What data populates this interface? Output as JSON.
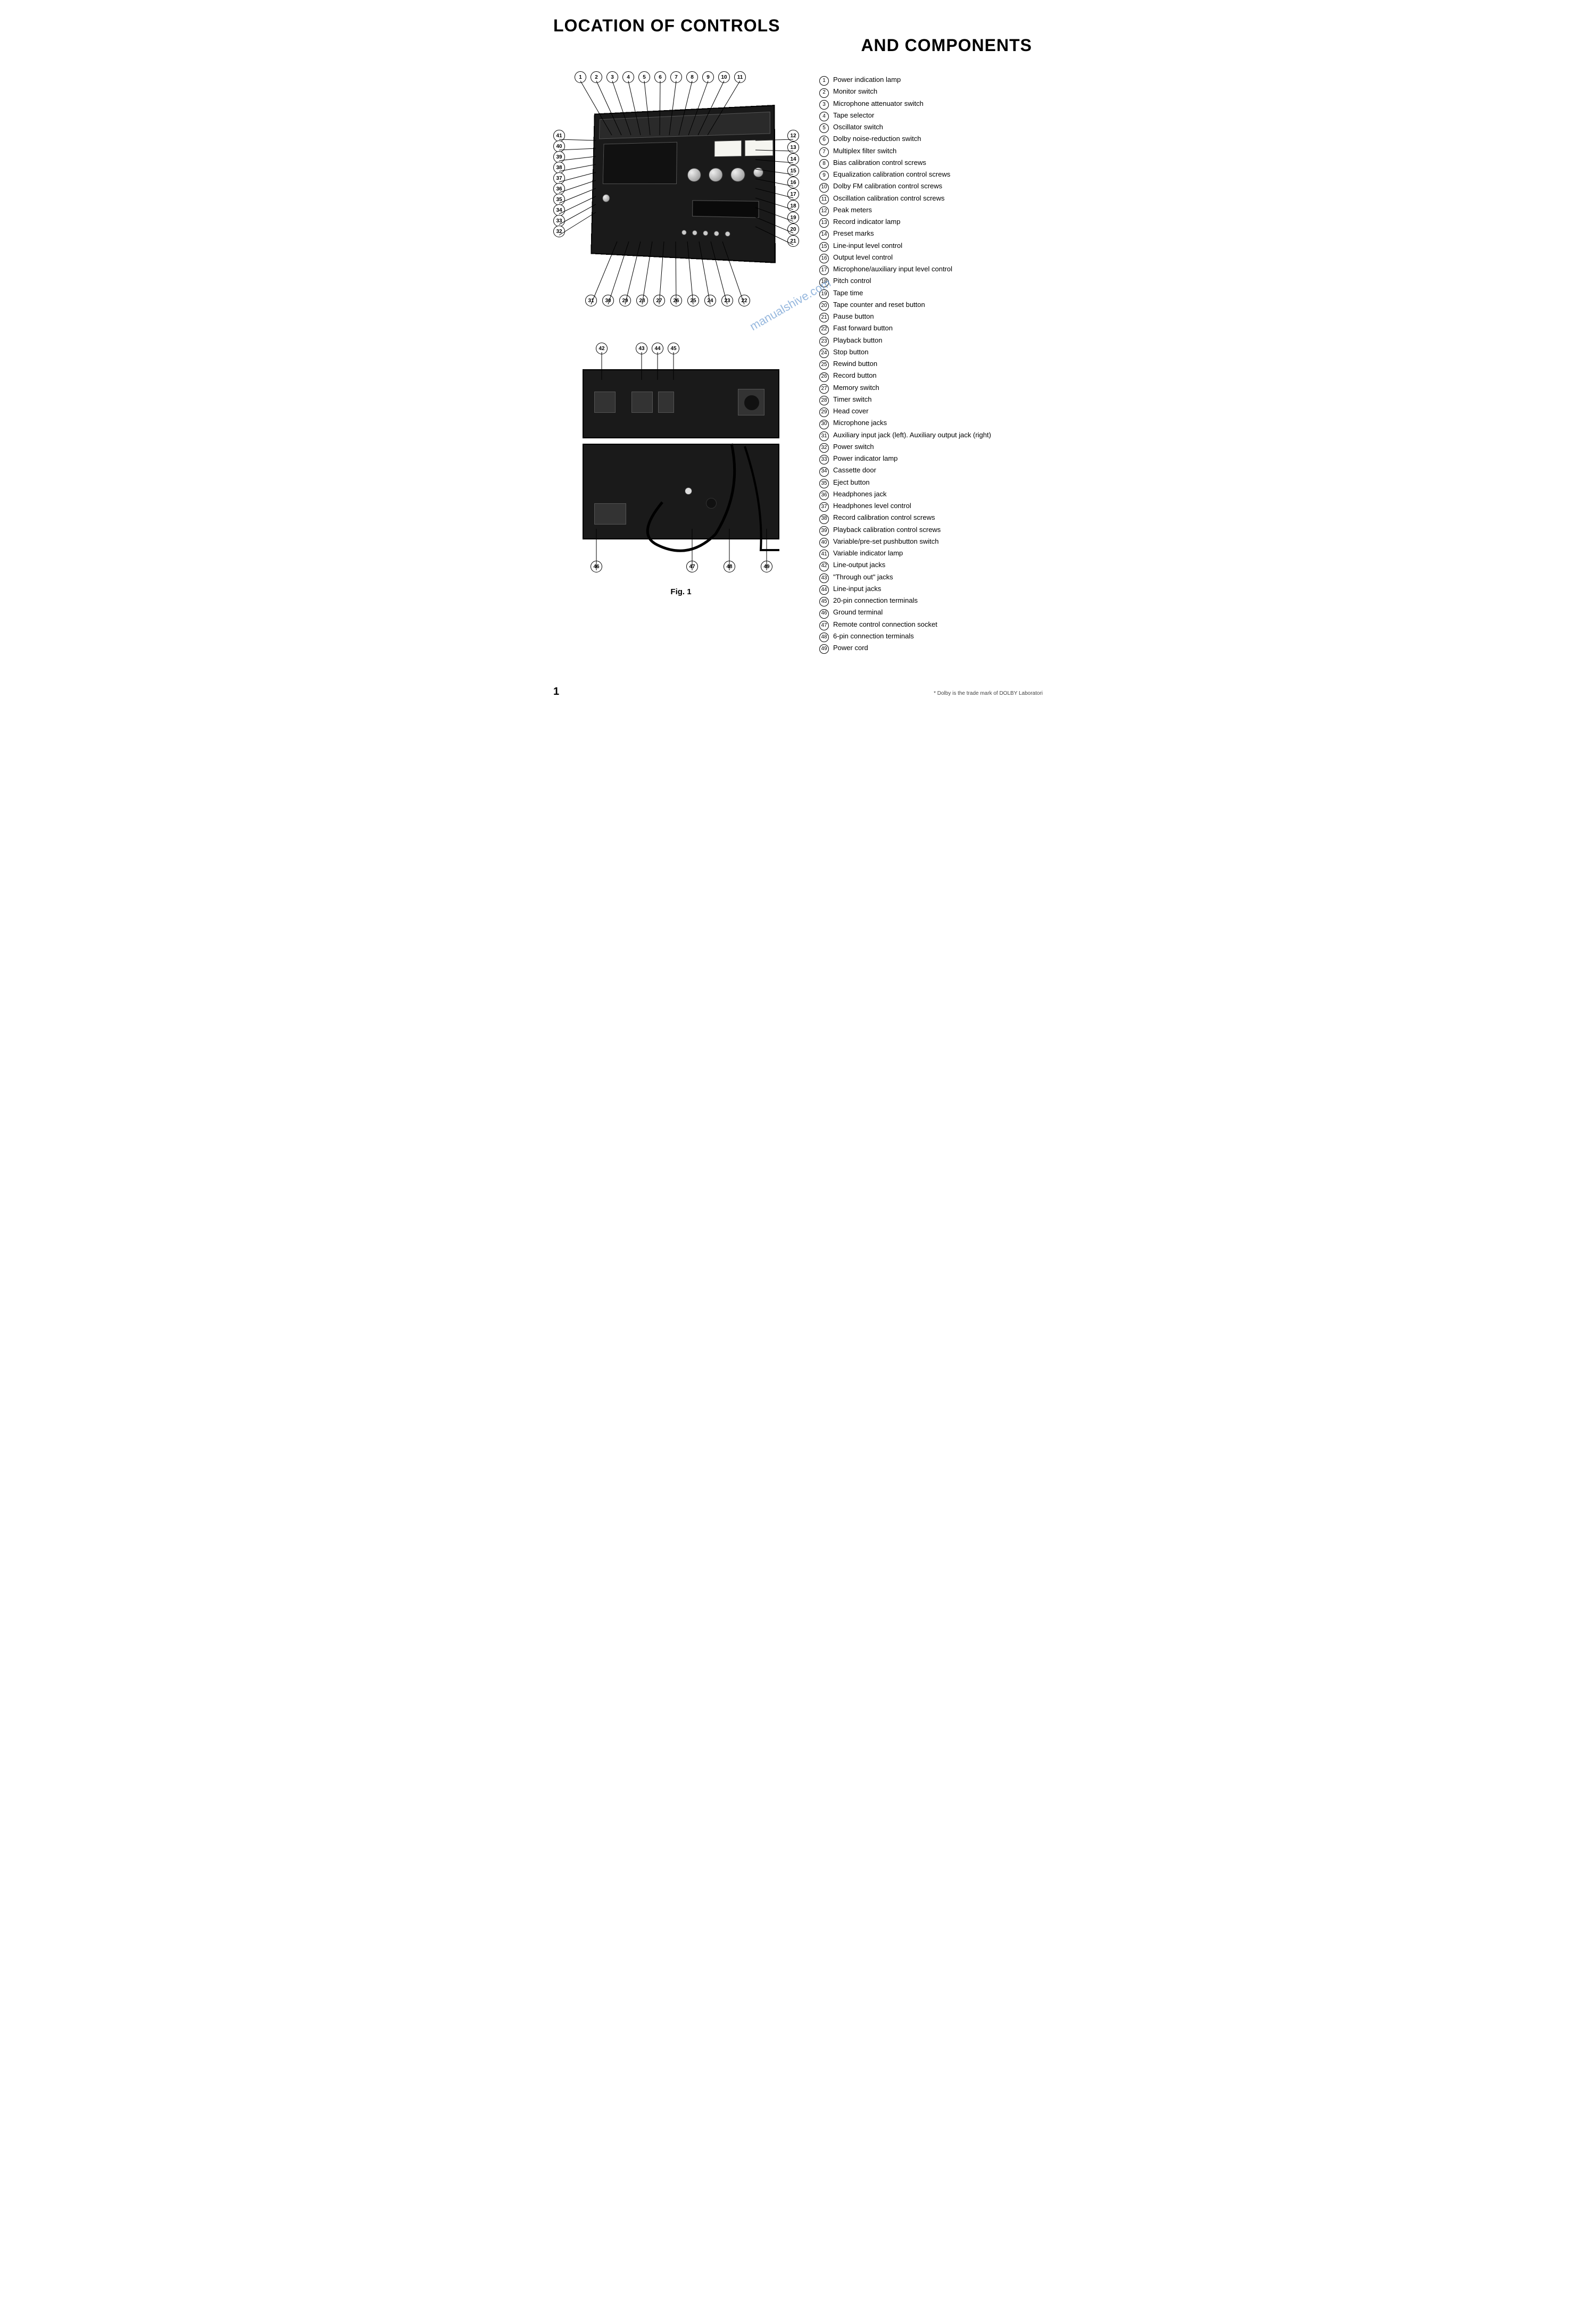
{
  "title": {
    "line1": "LOCATION OF CONTROLS",
    "line2": "AND COMPONENTS"
  },
  "diagram": {
    "figure_caption": "Fig. 1",
    "top_callouts_upper": [
      "1",
      "2",
      "3",
      "4",
      "5",
      "6",
      "7",
      "8",
      "9",
      "10",
      "11"
    ],
    "top_callouts_right": [
      "12",
      "13",
      "14",
      "15",
      "16",
      "17",
      "18",
      "19",
      "20",
      "21"
    ],
    "top_callouts_left": [
      "41",
      "40",
      "39",
      "38",
      "37",
      "36",
      "35",
      "34",
      "33",
      "32"
    ],
    "top_callouts_lower": [
      "31",
      "30",
      "29",
      "28",
      "27",
      "26",
      "25",
      "24",
      "23",
      "22"
    ],
    "bottom_callouts_upper": [
      "42",
      "43",
      "44",
      "45"
    ],
    "bottom_callouts_lower": [
      "46",
      "47",
      "48",
      "49"
    ],
    "colors": {
      "device_body": "#1a1a1a",
      "device_face": "#2a2a2a",
      "knob_light": "#eeeeee",
      "knob_dark": "#888888",
      "meter_bg": "#f5f5f0",
      "background": "#ffffff",
      "text": "#000000",
      "watermark": "#6b9bd1"
    }
  },
  "legend": [
    {
      "n": "1",
      "t": "Power indication lamp"
    },
    {
      "n": "2",
      "t": "Monitor switch"
    },
    {
      "n": "3",
      "t": "Microphone attenuator switch"
    },
    {
      "n": "4",
      "t": "Tape selector"
    },
    {
      "n": "5",
      "t": "Oscillator switch"
    },
    {
      "n": "6",
      "t": "Dolby noise-reduction switch"
    },
    {
      "n": "7",
      "t": "Multiplex filter switch"
    },
    {
      "n": "8",
      "t": "Bias calibration control screws"
    },
    {
      "n": "9",
      "t": "Equalization calibration control screws"
    },
    {
      "n": "10",
      "t": "Dolby FM calibration control screws"
    },
    {
      "n": "11",
      "t": "Oscillation calibration control screws"
    },
    {
      "n": "12",
      "t": "Peak meters"
    },
    {
      "n": "13",
      "t": "Record indicator lamp"
    },
    {
      "n": "14",
      "t": "Preset marks"
    },
    {
      "n": "15",
      "t": "Line-input level control"
    },
    {
      "n": "16",
      "t": "Output level control"
    },
    {
      "n": "17",
      "t": "Microphone/auxiliary input level control"
    },
    {
      "n": "18",
      "t": "Pitch control"
    },
    {
      "n": "19",
      "t": "Tape time"
    },
    {
      "n": "20",
      "t": "Tape counter and reset button"
    },
    {
      "n": "21",
      "t": "Pause button"
    },
    {
      "n": "22",
      "t": "Fast forward button"
    },
    {
      "n": "23",
      "t": "Playback button"
    },
    {
      "n": "24",
      "t": "Stop button"
    },
    {
      "n": "25",
      "t": "Rewind button"
    },
    {
      "n": "26",
      "t": "Record button"
    },
    {
      "n": "27",
      "t": "Memory switch"
    },
    {
      "n": "28",
      "t": "Timer switch"
    },
    {
      "n": "29",
      "t": "Head cover"
    },
    {
      "n": "30",
      "t": "Microphone jacks"
    },
    {
      "n": "31",
      "t": "Auxiliary input jack (left). Auxiliary output jack (right)"
    },
    {
      "n": "32",
      "t": "Power switch"
    },
    {
      "n": "33",
      "t": "Power indicator lamp"
    },
    {
      "n": "34",
      "t": "Cassette door"
    },
    {
      "n": "35",
      "t": "Eject button"
    },
    {
      "n": "36",
      "t": "Headphones jack"
    },
    {
      "n": "37",
      "t": "Headphones level control"
    },
    {
      "n": "38",
      "t": "Record calibration control screws"
    },
    {
      "n": "39",
      "t": "Playback calibration control screws"
    },
    {
      "n": "40",
      "t": "Variable/pre-set pushbutton switch"
    },
    {
      "n": "41",
      "t": "Variable indicator lamp"
    },
    {
      "n": "42",
      "t": "Line-output jacks"
    },
    {
      "n": "43",
      "t": "\"Through out\" jacks"
    },
    {
      "n": "44",
      "t": "Line-input jacks"
    },
    {
      "n": "45",
      "t": "20-pin connection terminals"
    },
    {
      "n": "46",
      "t": "Ground terminal"
    },
    {
      "n": "47",
      "t": "Remote control connection socket"
    },
    {
      "n": "48",
      "t": "6-pin connection terminals"
    },
    {
      "n": "49",
      "t": "Power cord"
    }
  ],
  "footer": {
    "page_number": "1",
    "footnote": "* Dolby is the trade mark of DOLBY Laboratori"
  },
  "watermark_text": "manualshive.com"
}
